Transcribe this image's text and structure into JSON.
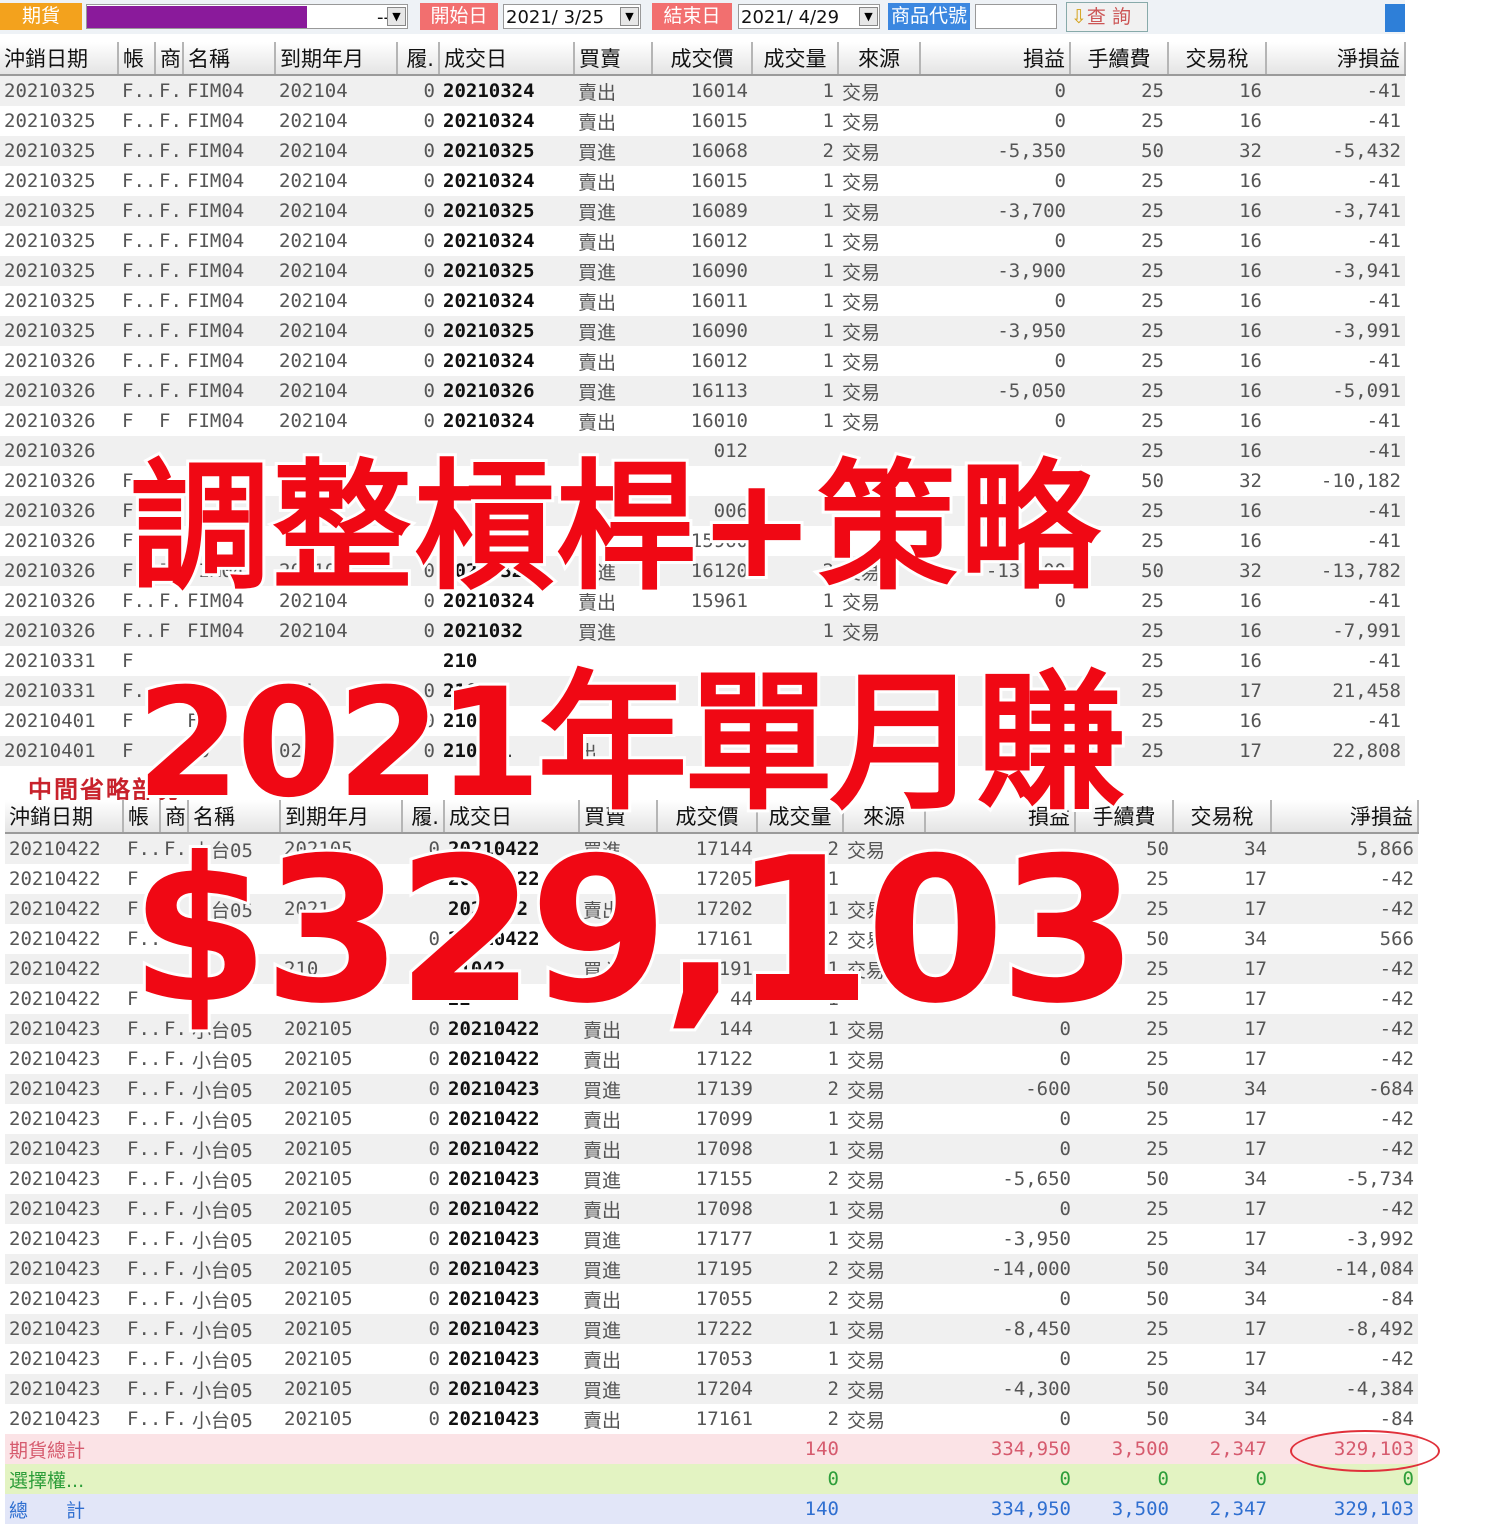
{
  "toolbar": {
    "market": "期貨",
    "account_value": "--",
    "start_label": "開始日",
    "start_date": "2021/ 3/25",
    "end_label": "結束日",
    "end_date": "2021/ 4/29",
    "product_label": "商品代號",
    "product_value": "",
    "query_label": "查 詢",
    "colors": {
      "market": "#f3a21d",
      "account_redaction": "#8a1a9b",
      "start_end": "#f26f6f",
      "product": "#3b87e0"
    }
  },
  "columns": [
    "沖銷日期",
    "帳",
    "商",
    "名稱",
    "到期年月",
    "履.",
    "成交日",
    "買賣",
    "成交價",
    "成交量",
    "來源",
    "損益",
    "手續費",
    "交易稅",
    "淨損益"
  ],
  "top_rows": [
    [
      "20210325",
      "F..",
      "F.",
      "FIM04",
      "202104",
      "0",
      "20210324",
      "賣出",
      "16014",
      "1",
      "交易",
      "0",
      "25",
      "16",
      "-41"
    ],
    [
      "20210325",
      "F..",
      "F.",
      "FIM04",
      "202104",
      "0",
      "20210324",
      "賣出",
      "16015",
      "1",
      "交易",
      "0",
      "25",
      "16",
      "-41"
    ],
    [
      "20210325",
      "F..",
      "F.",
      "FIM04",
      "202104",
      "0",
      "20210325",
      "買進",
      "16068",
      "2",
      "交易",
      "-5,350",
      "50",
      "32",
      "-5,432"
    ],
    [
      "20210325",
      "F..",
      "F.",
      "FIM04",
      "202104",
      "0",
      "20210324",
      "賣出",
      "16015",
      "1",
      "交易",
      "0",
      "25",
      "16",
      "-41"
    ],
    [
      "20210325",
      "F..",
      "F.",
      "FIM04",
      "202104",
      "0",
      "20210325",
      "買進",
      "16089",
      "1",
      "交易",
      "-3,700",
      "25",
      "16",
      "-3,741"
    ],
    [
      "20210325",
      "F..",
      "F.",
      "FIM04",
      "202104",
      "0",
      "20210324",
      "賣出",
      "16012",
      "1",
      "交易",
      "0",
      "25",
      "16",
      "-41"
    ],
    [
      "20210325",
      "F..",
      "F.",
      "FIM04",
      "202104",
      "0",
      "20210325",
      "買進",
      "16090",
      "1",
      "交易",
      "-3,900",
      "25",
      "16",
      "-3,941"
    ],
    [
      "20210325",
      "F..",
      "F.",
      "FIM04",
      "202104",
      "0",
      "20210324",
      "賣出",
      "16011",
      "1",
      "交易",
      "0",
      "25",
      "16",
      "-41"
    ],
    [
      "20210325",
      "F..",
      "F.",
      "FIM04",
      "202104",
      "0",
      "20210325",
      "買進",
      "16090",
      "1",
      "交易",
      "-3,950",
      "25",
      "16",
      "-3,991"
    ],
    [
      "20210326",
      "F..",
      "F.",
      "FIM04",
      "202104",
      "0",
      "20210324",
      "賣出",
      "16012",
      "1",
      "交易",
      "0",
      "25",
      "16",
      "-41"
    ],
    [
      "20210326",
      "F..",
      "F.",
      "FIM04",
      "202104",
      "0",
      "20210326",
      "買進",
      "16113",
      "1",
      "交易",
      "-5,050",
      "25",
      "16",
      "-5,091"
    ],
    [
      "20210326",
      "F",
      "F",
      "FIM04",
      "202104",
      "0",
      "20210324",
      "賣出",
      "16010",
      "1",
      "交易",
      "0",
      "25",
      "16",
      "-41"
    ],
    [
      "20210326",
      "",
      "",
      "",
      "",
      "",
      "",
      "",
      "012",
      "",
      "",
      "",
      "25",
      "16",
      "-41"
    ],
    [
      "20210326",
      "F",
      "",
      "",
      "",
      "",
      "",
      "",
      "",
      "",
      "",
      "",
      "50",
      "32",
      "-10,182"
    ],
    [
      "20210326",
      "F",
      "",
      "",
      "",
      "",
      "",
      "",
      "006",
      "",
      "",
      "",
      "25",
      "16",
      "-41"
    ],
    [
      "20210326",
      "F",
      "",
      "",
      "",
      "0",
      "",
      "",
      "15960",
      "",
      "",
      "",
      "25",
      "16",
      "-41"
    ],
    [
      "20210326",
      "F..",
      "F.",
      "FIM04",
      "202104",
      "0",
      "20210326",
      "買進",
      "16120",
      "2",
      "交易",
      "-13,700",
      "50",
      "32",
      "-13,782"
    ],
    [
      "20210326",
      "F..",
      "F.",
      "FIM04",
      "202104",
      "0",
      "20210324",
      "賣出",
      "15961",
      "1",
      "交易",
      "0",
      "25",
      "16",
      "-41"
    ],
    [
      "20210326",
      "F..",
      "F",
      "FIM04",
      "202104",
      "0",
      "2021032",
      "買進",
      "",
      "1",
      "交易",
      "",
      "25",
      "16",
      "-7,991"
    ],
    [
      "20210331",
      "F",
      "",
      "",
      "",
      "",
      "210",
      "",
      "",
      "",
      "",
      "",
      "25",
      "16",
      "-41"
    ],
    [
      "20210331",
      "F..",
      "F",
      "",
      "104",
      "0",
      "2103",
      "",
      "",
      "",
      "",
      "",
      "25",
      "17",
      "21,458"
    ],
    [
      "20210401",
      "F",
      "",
      "FIM",
      "",
      "0",
      "210",
      "",
      "",
      "",
      "",
      "",
      "25",
      "16",
      "-41"
    ],
    [
      "20210401",
      "F",
      "",
      "M0",
      "02",
      "0",
      "210401",
      "出",
      "",
      "",
      "",
      "",
      "25",
      "17",
      "22,808"
    ]
  ],
  "bottom_rows": [
    [
      "20210422",
      "F..",
      "F.",
      "小台05",
      "202105",
      "0",
      "20210422",
      "買進",
      "17144",
      "2",
      "交易",
      "",
      "50",
      "34",
      "5,866"
    ],
    [
      "20210422",
      "F",
      "",
      "",
      "",
      "",
      "20210422",
      "",
      "17205",
      "1",
      "",
      "",
      "25",
      "17",
      "-42"
    ],
    [
      "20210422",
      "F",
      "",
      "小台05",
      "2021",
      "",
      "2021042",
      "賣出",
      "17202",
      "1",
      "交易",
      "",
      "25",
      "17",
      "-42"
    ],
    [
      "20210422",
      "F..",
      "",
      "",
      "",
      "0",
      "20210422",
      "",
      "17161",
      "2",
      "交易",
      "",
      "50",
      "34",
      "566"
    ],
    [
      "20210422",
      "",
      "",
      "",
      "210",
      "",
      "21042",
      "買入",
      "17191",
      "1",
      "交易",
      "",
      "25",
      "17",
      "-42"
    ],
    [
      "20210422",
      "F",
      "",
      "",
      "",
      "",
      "22",
      "",
      "44",
      "1",
      "",
      "",
      "25",
      "17",
      "-42"
    ],
    [
      "20210423",
      "F..",
      "F.",
      "小台05",
      "202105",
      "0",
      "20210422",
      "賣出",
      "144",
      "1",
      "交易",
      "0",
      "25",
      "17",
      "-42"
    ],
    [
      "20210423",
      "F..",
      "F.",
      "小台05",
      "202105",
      "0",
      "20210422",
      "賣出",
      "17122",
      "1",
      "交易",
      "0",
      "25",
      "17",
      "-42"
    ],
    [
      "20210423",
      "F..",
      "F.",
      "小台05",
      "202105",
      "0",
      "20210423",
      "買進",
      "17139",
      "2",
      "交易",
      "-600",
      "50",
      "34",
      "-684"
    ],
    [
      "20210423",
      "F..",
      "F.",
      "小台05",
      "202105",
      "0",
      "20210422",
      "賣出",
      "17099",
      "1",
      "交易",
      "0",
      "25",
      "17",
      "-42"
    ],
    [
      "20210423",
      "F..",
      "F.",
      "小台05",
      "202105",
      "0",
      "20210422",
      "賣出",
      "17098",
      "1",
      "交易",
      "0",
      "25",
      "17",
      "-42"
    ],
    [
      "20210423",
      "F..",
      "F.",
      "小台05",
      "202105",
      "0",
      "20210423",
      "買進",
      "17155",
      "2",
      "交易",
      "-5,650",
      "50",
      "34",
      "-5,734"
    ],
    [
      "20210423",
      "F..",
      "F.",
      "小台05",
      "202105",
      "0",
      "20210422",
      "賣出",
      "17098",
      "1",
      "交易",
      "0",
      "25",
      "17",
      "-42"
    ],
    [
      "20210423",
      "F..",
      "F.",
      "小台05",
      "202105",
      "0",
      "20210423",
      "買進",
      "17177",
      "1",
      "交易",
      "-3,950",
      "25",
      "17",
      "-3,992"
    ],
    [
      "20210423",
      "F..",
      "F.",
      "小台05",
      "202105",
      "0",
      "20210423",
      "買進",
      "17195",
      "2",
      "交易",
      "-14,000",
      "50",
      "34",
      "-14,084"
    ],
    [
      "20210423",
      "F..",
      "F.",
      "小台05",
      "202105",
      "0",
      "20210423",
      "賣出",
      "17055",
      "2",
      "交易",
      "0",
      "50",
      "34",
      "-84"
    ],
    [
      "20210423",
      "F..",
      "F.",
      "小台05",
      "202105",
      "0",
      "20210423",
      "買進",
      "17222",
      "1",
      "交易",
      "-8,450",
      "25",
      "17",
      "-8,492"
    ],
    [
      "20210423",
      "F..",
      "F.",
      "小台05",
      "202105",
      "0",
      "20210423",
      "賣出",
      "17053",
      "1",
      "交易",
      "0",
      "25",
      "17",
      "-42"
    ],
    [
      "20210423",
      "F..",
      "F.",
      "小台05",
      "202105",
      "0",
      "20210423",
      "買進",
      "17204",
      "2",
      "交易",
      "-4,300",
      "50",
      "34",
      "-4,384"
    ],
    [
      "20210423",
      "F..",
      "F.",
      "小台05",
      "202105",
      "0",
      "20210423",
      "賣出",
      "17161",
      "2",
      "交易",
      "0",
      "50",
      "34",
      "-84"
    ]
  ],
  "totals": {
    "futures": {
      "label": "期貨總計",
      "volume": "140",
      "pnl": "334,950",
      "fee": "3,500",
      "tax": "2,347",
      "net": "329,103"
    },
    "options": {
      "label": "選擇權...",
      "volume": "0",
      "pnl": "0",
      "fee": "0",
      "tax": "0",
      "net": "0"
    },
    "all": {
      "label": "總　　計",
      "volume": "140",
      "pnl": "334,950",
      "fee": "3,500",
      "tax": "2,347",
      "net": "329,103"
    }
  },
  "overlay": {
    "note": "中間省略部分",
    "headline1": "調整槓桿+策略",
    "headline2": "2021年單月賺",
    "headline3": "$329,103",
    "headline_color": "#f00814",
    "circle_color": "#e0303a"
  }
}
